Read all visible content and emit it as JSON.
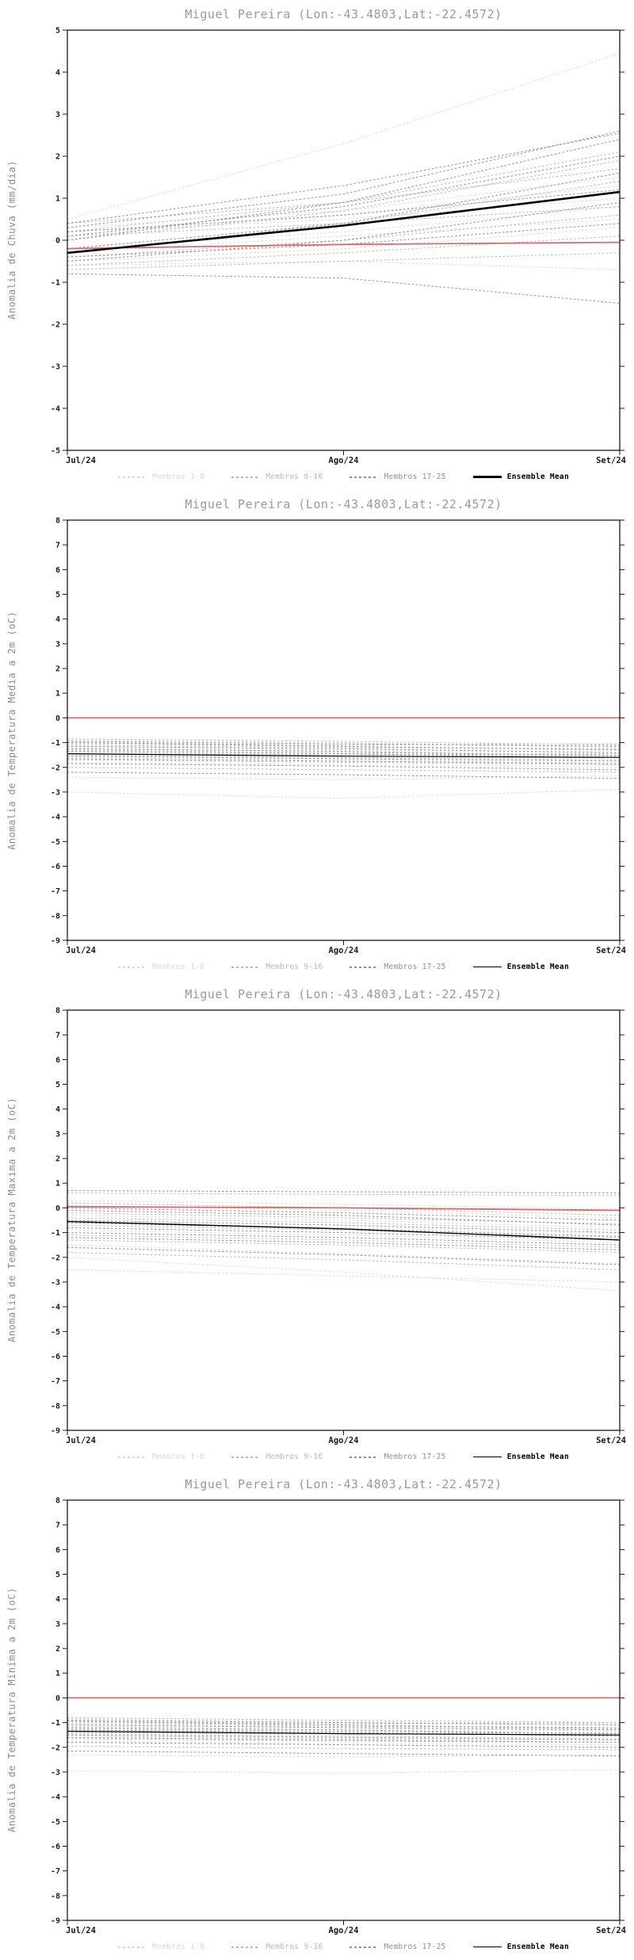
{
  "chart_data": [
    {
      "type": "line",
      "title": "Miguel Pereira (Lon:-43.4803,Lat:-22.4572)",
      "ylabel": "Anomalia de Chuva (mm/dia)",
      "xlabel": "",
      "x_categories": [
        "Jul/24",
        "Ago/24",
        "Set/24"
      ],
      "ylim": [
        -5,
        5
      ],
      "ytick_step": 1,
      "grid": false,
      "legend_position": "bottom",
      "groups": [
        {
          "name": "Membros 1-8",
          "color": "#d9d9d9",
          "members": [
            [
              0.5,
              2.3,
              4.45
            ],
            [
              -0.6,
              -0.5,
              -0.7
            ],
            [
              0.2,
              0.5,
              1.0
            ],
            [
              -0.3,
              0.1,
              0.5
            ],
            [
              0.1,
              0.6,
              1.3
            ],
            [
              -0.5,
              -0.2,
              0.3
            ],
            [
              0.3,
              0.7,
              1.5
            ],
            [
              -0.2,
              0.2,
              0.8
            ]
          ]
        },
        {
          "name": "Membros 9-16",
          "color": "#b8b8b8",
          "members": [
            [
              0.4,
              0.9,
              1.7
            ],
            [
              -0.7,
              -0.5,
              -0.3
            ],
            [
              0.0,
              0.7,
              1.9
            ],
            [
              -0.4,
              0.0,
              0.6
            ],
            [
              0.2,
              0.9,
              2.1
            ],
            [
              -0.6,
              -0.3,
              0.1
            ],
            [
              0.1,
              0.4,
              0.8
            ],
            [
              -0.3,
              0.4,
              1.4
            ]
          ]
        },
        {
          "name": "Membros 17-25",
          "color": "#8f8f8f",
          "members": [
            [
              0.3,
              1.1,
              2.6
            ],
            [
              -0.5,
              0.0,
              0.9
            ],
            [
              0.0,
              0.9,
              2.4
            ],
            [
              -0.8,
              -0.9,
              -1.5
            ],
            [
              0.2,
              0.6,
              1.2
            ],
            [
              -0.2,
              0.4,
              1.6
            ],
            [
              0.4,
              1.3,
              2.55
            ],
            [
              -0.4,
              -0.1,
              0.4
            ],
            [
              0.1,
              0.8,
              2.0
            ]
          ]
        }
      ],
      "mean": {
        "name": "Ensemble Mean",
        "color": "#000000",
        "width": 2.6,
        "values": [
          -0.3,
          0.35,
          1.15
        ]
      },
      "reference": {
        "color": "#d96b6b",
        "width": 1.8,
        "values": [
          -0.2,
          -0.1,
          -0.05
        ]
      }
    },
    {
      "type": "line",
      "title": "Miguel Pereira (Lon:-43.4803,Lat:-22.4572)",
      "ylabel": "Anomalia de Temperatura Media a 2m (oC)",
      "xlabel": "",
      "x_categories": [
        "Jul/24",
        "Ago/24",
        "Set/24"
      ],
      "ylim": [
        -9,
        8
      ],
      "ytick_step": 1,
      "grid": false,
      "legend_position": "bottom",
      "groups": [
        {
          "name": "Membros 1-8",
          "color": "#d9d9d9",
          "members": [
            [
              -3.0,
              -3.25,
              -2.9
            ],
            [
              -1.05,
              -1.15,
              -1.3
            ],
            [
              -1.4,
              -1.5,
              -1.6
            ],
            [
              -0.9,
              -1.0,
              -1.2
            ],
            [
              -1.6,
              -1.7,
              -1.85
            ],
            [
              -2.4,
              -2.5,
              -2.35
            ],
            [
              -1.2,
              -1.3,
              -1.45
            ],
            [
              -1.8,
              -1.9,
              -2.0
            ]
          ]
        },
        {
          "name": "Membros 9-16",
          "color": "#b8b8b8",
          "members": [
            [
              -1.0,
              -1.1,
              -1.05
            ],
            [
              -1.3,
              -1.4,
              -1.5
            ],
            [
              -1.7,
              -1.8,
              -1.9
            ],
            [
              -0.85,
              -0.95,
              -1.1
            ],
            [
              -1.5,
              -1.6,
              -1.7
            ],
            [
              -2.0,
              -2.1,
              -2.2
            ],
            [
              -1.1,
              -1.2,
              -1.25
            ],
            [
              -1.45,
              -1.5,
              -1.45
            ]
          ]
        },
        {
          "name": "Membros 17-25",
          "color": "#8f8f8f",
          "members": [
            [
              -0.95,
              -1.05,
              -1.15
            ],
            [
              -1.25,
              -1.35,
              -1.55
            ],
            [
              -1.65,
              -1.75,
              -1.85
            ],
            [
              -2.2,
              -2.3,
              -2.45
            ],
            [
              -1.0,
              -1.15,
              -1.3
            ],
            [
              -1.35,
              -1.45,
              -1.6
            ],
            [
              -1.85,
              -1.95,
              -2.1
            ],
            [
              -1.15,
              -1.25,
              -1.4
            ],
            [
              -1.55,
              -1.65,
              -1.75
            ]
          ]
        }
      ],
      "mean": {
        "name": "Ensemble Mean",
        "color": "#000000",
        "width": 1.2,
        "values": [
          -1.45,
          -1.55,
          -1.6
        ]
      },
      "reference": {
        "color": "#d96b6b",
        "width": 1.8,
        "values": [
          0,
          0,
          0
        ]
      }
    },
    {
      "type": "line",
      "title": "Miguel Pereira (Lon:-43.4803,Lat:-22.4572)",
      "ylabel": "Anomalia de Temperatura Maxima a 2m (oC)",
      "xlabel": "",
      "x_categories": [
        "Jul/24",
        "Ago/24",
        "Set/24"
      ],
      "ylim": [
        -9,
        8
      ],
      "ytick_step": 1,
      "grid": false,
      "legend_position": "bottom",
      "groups": [
        {
          "name": "Membros 1-8",
          "color": "#d9d9d9",
          "members": [
            [
              -2.0,
              -2.6,
              -3.35
            ],
            [
              0.3,
              0.15,
              -0.05
            ],
            [
              -0.6,
              -0.8,
              -1.05
            ],
            [
              -1.5,
              -1.85,
              -2.25
            ],
            [
              0.1,
              -0.1,
              -0.4
            ],
            [
              -0.9,
              -1.1,
              -1.4
            ],
            [
              -2.5,
              -2.75,
              -3.0
            ],
            [
              -0.3,
              -0.5,
              -0.8
            ]
          ]
        },
        {
          "name": "Membros 9-16",
          "color": "#b8b8b8",
          "members": [
            [
              0.6,
              0.55,
              0.5
            ],
            [
              -0.4,
              -0.6,
              -0.9
            ],
            [
              -1.1,
              -1.3,
              -1.6
            ],
            [
              0.2,
              0.0,
              -0.3
            ],
            [
              -0.7,
              -0.9,
              -1.2
            ],
            [
              -1.8,
              -2.1,
              -2.5
            ],
            [
              -0.2,
              -0.4,
              -0.65
            ],
            [
              -1.3,
              -1.5,
              -1.8
            ]
          ]
        },
        {
          "name": "Membros 17-25",
          "color": "#8f8f8f",
          "members": [
            [
              0.7,
              0.65,
              0.6
            ],
            [
              -0.5,
              -0.7,
              -1.0
            ],
            [
              -1.0,
              -1.2,
              -1.5
            ],
            [
              0.0,
              -0.2,
              -0.5
            ],
            [
              -0.8,
              -1.0,
              -1.3
            ],
            [
              -1.6,
              -1.9,
              -2.3
            ],
            [
              -0.1,
              -0.3,
              -0.7
            ],
            [
              -1.2,
              -1.4,
              -1.7
            ],
            [
              -0.6,
              -0.85,
              -1.15
            ]
          ]
        }
      ],
      "mean": {
        "name": "Ensemble Mean",
        "color": "#000000",
        "width": 1.4,
        "values": [
          -0.55,
          -0.85,
          -1.3
        ]
      },
      "reference": {
        "color": "#d96b6b",
        "width": 1.8,
        "values": [
          0.05,
          0.0,
          -0.1
        ]
      }
    },
    {
      "type": "line",
      "title": "Miguel Pereira (Lon:-43.4803,Lat:-22.4572)",
      "ylabel": "Anomalia de Temperatura Minima a 2m (oC)",
      "xlabel": "",
      "x_categories": [
        "Jul/24",
        "Ago/24",
        "Set/24"
      ],
      "ylim": [
        -9,
        8
      ],
      "ytick_step": 1,
      "grid": false,
      "legend_position": "bottom",
      "groups": [
        {
          "name": "Membros 1-8",
          "color": "#d9d9d9",
          "members": [
            [
              -2.95,
              -3.05,
              -2.9
            ],
            [
              -1.0,
              -1.1,
              -1.2
            ],
            [
              -1.35,
              -1.45,
              -1.5
            ],
            [
              -0.85,
              -0.95,
              -1.05
            ],
            [
              -1.55,
              -1.65,
              -1.7
            ],
            [
              -2.3,
              -2.4,
              -2.3
            ],
            [
              -1.15,
              -1.25,
              -1.35
            ],
            [
              -1.75,
              -1.85,
              -1.9
            ]
          ]
        },
        {
          "name": "Membros 9-16",
          "color": "#b8b8b8",
          "members": [
            [
              -0.95,
              -1.05,
              -1.0
            ],
            [
              -1.25,
              -1.35,
              -1.45
            ],
            [
              -1.65,
              -1.75,
              -1.8
            ],
            [
              -0.8,
              -0.9,
              -1.0
            ],
            [
              -1.45,
              -1.55,
              -1.65
            ],
            [
              -1.95,
              -2.05,
              -2.1
            ],
            [
              -1.05,
              -1.15,
              -1.2
            ],
            [
              -1.4,
              -1.45,
              -1.4
            ]
          ]
        },
        {
          "name": "Membros 17-25",
          "color": "#8f8f8f",
          "members": [
            [
              -0.9,
              -1.0,
              -1.1
            ],
            [
              -1.2,
              -1.3,
              -1.45
            ],
            [
              -1.6,
              -1.7,
              -1.8
            ],
            [
              -2.15,
              -2.25,
              -2.35
            ],
            [
              -0.95,
              -1.1,
              -1.25
            ],
            [
              -1.3,
              -1.4,
              -1.55
            ],
            [
              -1.8,
              -1.9,
              -2.0
            ],
            [
              -1.1,
              -1.2,
              -1.3
            ],
            [
              -1.5,
              -1.6,
              -1.7
            ]
          ]
        }
      ],
      "mean": {
        "name": "Ensemble Mean",
        "color": "#000000",
        "width": 1.2,
        "values": [
          -1.35,
          -1.45,
          -1.5
        ]
      },
      "reference": {
        "color": "#d96b6b",
        "width": 1.8,
        "values": [
          0,
          0,
          0
        ]
      }
    }
  ]
}
